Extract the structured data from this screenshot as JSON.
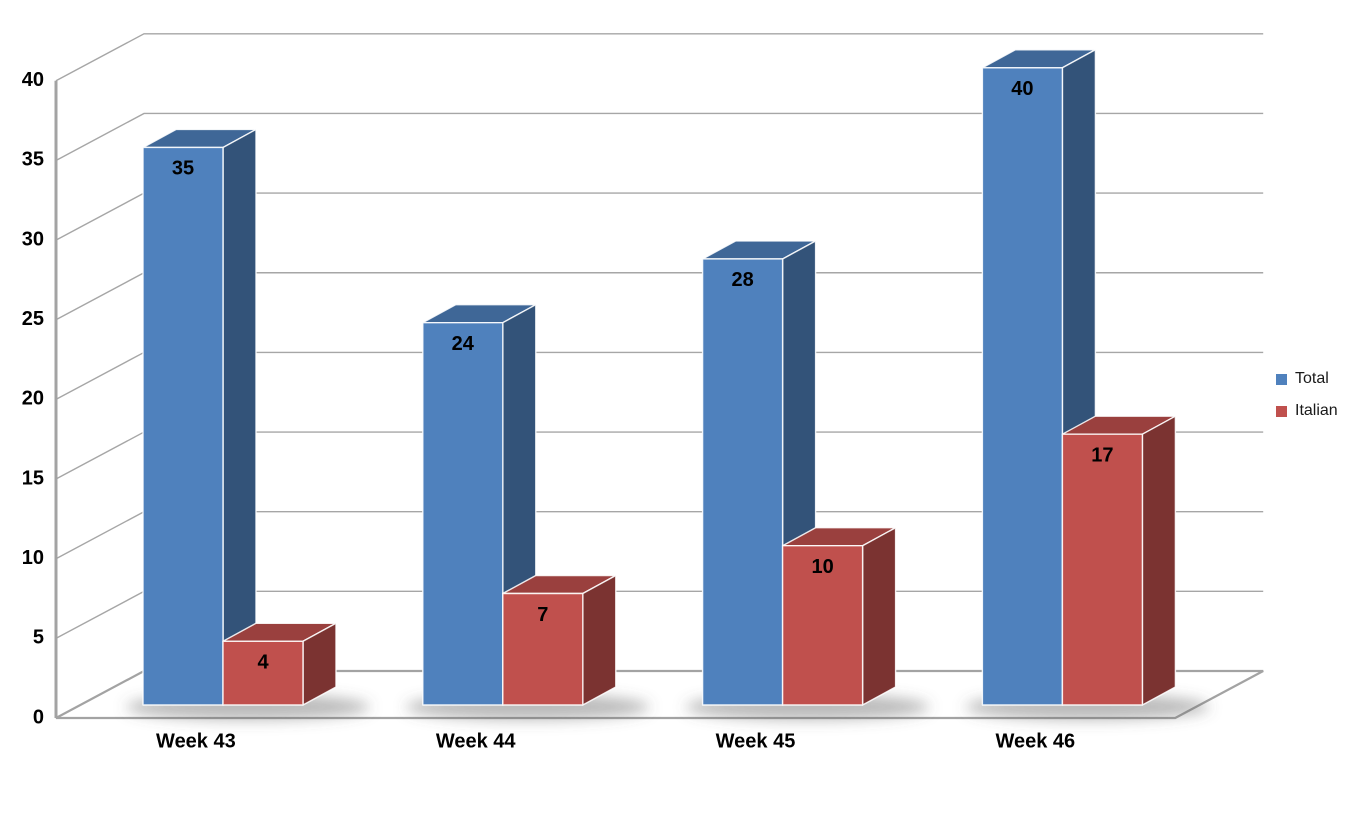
{
  "chart_data": {
    "type": "bar",
    "projection": "3d",
    "title": "",
    "xlabel": "",
    "ylabel": "",
    "categories": [
      "Week 43",
      "Week 44",
      "Week 45",
      "Week 46"
    ],
    "series": [
      {
        "name": "Total",
        "color": "#4F81BD",
        "values": [
          35,
          24,
          28,
          40
        ]
      },
      {
        "name": "Italian",
        "color": "#C0504D",
        "values": [
          4,
          7,
          10,
          17
        ]
      }
    ],
    "yticks": [
      0,
      5,
      10,
      15,
      20,
      25,
      30,
      35,
      40
    ],
    "ylim": [
      0,
      40
    ],
    "grid": true,
    "data_labels": true,
    "legend_position": "right",
    "colors": {
      "gridline": "#A6A6A6",
      "axis": "#A3A3A3",
      "label_text": "#000000",
      "legend_text": "#1a1a1a",
      "background": "#ffffff"
    }
  }
}
